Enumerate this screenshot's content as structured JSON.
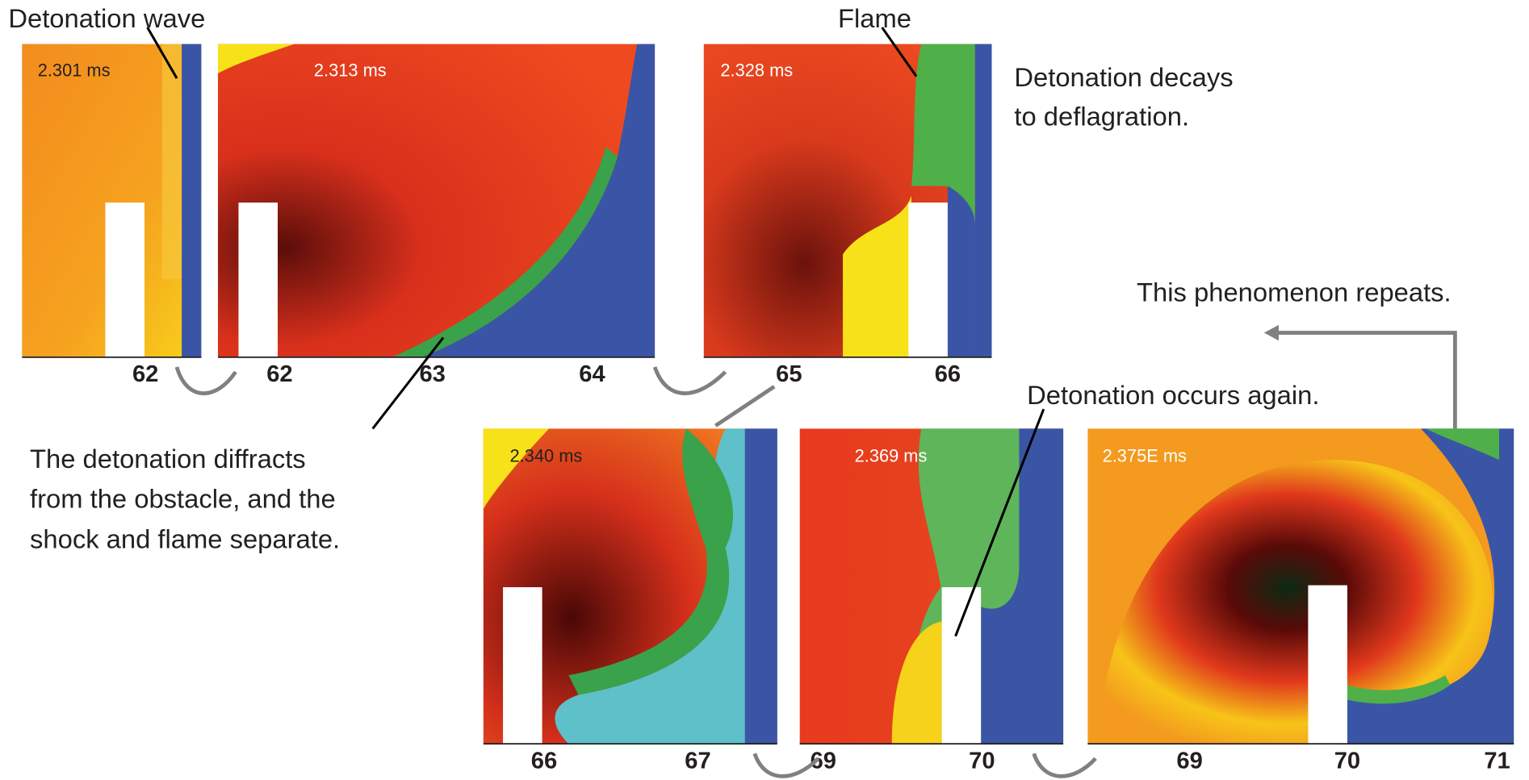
{
  "annotations": {
    "detonation_wave": "Detonation wave",
    "flame": "Flame",
    "decays": [
      "Detonation decays",
      "to deflagration."
    ],
    "repeats": "This phenomenon repeats.",
    "occurs_again": "Detonation occurs again.",
    "diffracts": [
      "The detonation diffracts",
      "from the obstacle, and the",
      "shock and flame separate."
    ]
  },
  "panels": [
    {
      "time": "2.301 ms",
      "ticks": [
        62
      ]
    },
    {
      "time": "2.313 ms",
      "ticks": [
        62,
        63,
        64
      ]
    },
    {
      "time": "2.328 ms",
      "ticks": [
        65,
        66
      ]
    },
    {
      "time": "2.340 ms",
      "ticks": [
        66,
        67
      ]
    },
    {
      "time": "2.369 ms",
      "ticks": [
        69,
        70
      ]
    },
    {
      "time": "2.375E ms",
      "ticks": [
        69,
        70,
        71
      ]
    }
  ]
}
